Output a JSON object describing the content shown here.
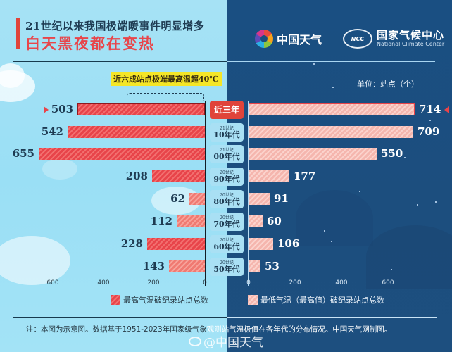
{
  "header": {
    "title_line1": "21世纪以来我国极端暖事件明显增多",
    "title_line2": "白天黑夜都在变热",
    "logo1_text": "中国天气",
    "logo2_cn": "国家气候中心",
    "logo2_en": "National Climate Center",
    "logo2_badge": "NCC"
  },
  "callout": "近六成站点极端最高温超40℃",
  "unit_label": "单位：站点（个）",
  "categories": [
    {
      "prefix": "",
      "label": "近三年",
      "highlight": true
    },
    {
      "prefix": "21世纪",
      "label": "10年代",
      "highlight": false
    },
    {
      "prefix": "21世纪",
      "label": "00年代",
      "highlight": false
    },
    {
      "prefix": "20世纪",
      "label": "90年代",
      "highlight": false
    },
    {
      "prefix": "20世纪",
      "label": "80年代",
      "highlight": false
    },
    {
      "prefix": "20世纪",
      "label": "70年代",
      "highlight": false
    },
    {
      "prefix": "20世纪",
      "label": "60年代",
      "highlight": false
    },
    {
      "prefix": "20世纪",
      "label": "50年代",
      "highlight": false
    }
  ],
  "left_ticks": [
    "600",
    "400",
    "200",
    "0"
  ],
  "right_ticks": [
    "0",
    "200",
    "400",
    "600"
  ],
  "legend": {
    "left": "最高气温破纪录站点总数",
    "right": "最低气温（最高值）破纪录站点总数"
  },
  "footer": {
    "note_part1": "注：本图为示意图。数据基于1951-2023年国家级气象",
    "note_part2": "观测站气温极值在各年代的分布情况。中国天气网制图。",
    "watermark": "@中国天气"
  },
  "colors": {
    "max_temp_bar": "#e8444a",
    "min_temp_bar": "#f5b6ae",
    "accent_red": "#e0443a",
    "left_bg": "#9adff5",
    "right_bg": "#1c4e7e",
    "callout_bg": "#f5e627"
  },
  "chart_data": {
    "type": "bar",
    "orientation": "horizontal-butterfly",
    "title": "21世纪以来我国极端暖事件明显增多 白天黑夜都在变热",
    "categories": [
      "近三年",
      "21世纪10年代",
      "21世纪00年代",
      "20世纪90年代",
      "20世纪80年代",
      "20世纪70年代",
      "20世纪60年代",
      "20世纪50年代"
    ],
    "series": [
      {
        "name": "最高气温破纪录站点总数",
        "side": "left",
        "values": [
          503,
          542,
          655,
          208,
          62,
          112,
          228,
          143
        ]
      },
      {
        "name": "最低气温（最高值）破纪录站点总数",
        "side": "right",
        "values": [
          714,
          709,
          550,
          177,
          91,
          60,
          106,
          53
        ]
      }
    ],
    "xlabel": "",
    "ylabel": "单位：站点（个）",
    "xlim_left": [
      0,
      650
    ],
    "xlim_right": [
      0,
      700
    ],
    "ticks": [
      0,
      200,
      400,
      600
    ],
    "annotations": [
      "近六成站点极端最高温超40℃"
    ],
    "legend_position": "bottom",
    "grid": false
  }
}
